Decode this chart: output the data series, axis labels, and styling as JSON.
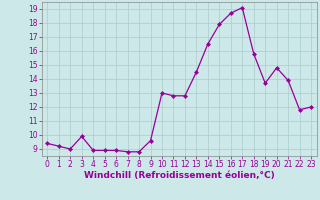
{
  "x": [
    0,
    1,
    2,
    3,
    4,
    5,
    6,
    7,
    8,
    9,
    10,
    11,
    12,
    13,
    14,
    15,
    16,
    17,
    18,
    19,
    20,
    21,
    22,
    23
  ],
  "y": [
    9.4,
    9.2,
    9.0,
    9.9,
    8.9,
    8.9,
    8.9,
    8.8,
    8.8,
    9.6,
    13.0,
    12.8,
    12.8,
    14.5,
    16.5,
    17.9,
    18.7,
    19.1,
    15.8,
    13.7,
    14.8,
    13.9,
    11.8,
    12.0
  ],
  "line_color": "#990099",
  "marker": "D",
  "marker_size": 2.0,
  "background_color": "#cce8e8",
  "grid_color": "#b0d0d0",
  "xlabel": "Windchill (Refroidissement éolien,°C)",
  "xlim": [
    -0.5,
    23.5
  ],
  "ylim": [
    8.5,
    19.5
  ],
  "yticks": [
    9,
    10,
    11,
    12,
    13,
    14,
    15,
    16,
    17,
    18,
    19
  ],
  "xticks": [
    0,
    1,
    2,
    3,
    4,
    5,
    6,
    7,
    8,
    9,
    10,
    11,
    12,
    13,
    14,
    15,
    16,
    17,
    18,
    19,
    20,
    21,
    22,
    23
  ],
  "tick_color": "#990099",
  "label_color": "#990099",
  "label_fontsize": 6.5,
  "tick_fontsize": 5.5,
  "spine_color": "#888888"
}
